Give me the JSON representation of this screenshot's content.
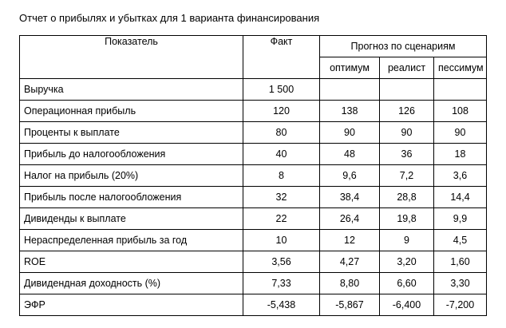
{
  "title": "Отчет о прибылях и убытках для 1 варианта финансирования",
  "headers": {
    "indicator": "Показатель",
    "fact": "Факт",
    "forecast_group": "Прогноз по сценариям",
    "scenarios": [
      "оптимум",
      "реалист",
      "пессимум"
    ]
  },
  "rows": [
    {
      "label": "Выручка",
      "fact": "1 500",
      "opt": "",
      "real": "",
      "pess": ""
    },
    {
      "label": "Операционная прибыль",
      "fact": "120",
      "opt": "138",
      "real": "126",
      "pess": "108"
    },
    {
      "label": "Проценты к выплате",
      "fact": "80",
      "opt": "90",
      "real": "90",
      "pess": "90"
    },
    {
      "label": "Прибыль до налогообложения",
      "fact": "40",
      "opt": "48",
      "real": "36",
      "pess": "18"
    },
    {
      "label": "Налог на прибыль (20%)",
      "fact": "8",
      "opt": "9,6",
      "real": "7,2",
      "pess": "3,6"
    },
    {
      "label": "Прибыль после налогообложения",
      "fact": "32",
      "opt": "38,4",
      "real": "28,8",
      "pess": "14,4"
    },
    {
      "label": "Дивиденды к выплате",
      "fact": "22",
      "opt": "26,4",
      "real": "19,8",
      "pess": "9,9"
    },
    {
      "label": "Нераспределенная прибыль за год",
      "fact": "10",
      "opt": "12",
      "real": "9",
      "pess": "4,5"
    },
    {
      "label": "ROE",
      "fact": "3,56",
      "opt": "4,27",
      "real": "3,20",
      "pess": "1,60"
    },
    {
      "label": "Дивидендная доходность (%)",
      "fact": "7,33",
      "opt": "8,80",
      "real": "6,60",
      "pess": "3,30"
    },
    {
      "label": "ЭФР",
      "fact": "-5,438",
      "opt": "-5,867",
      "real": "-6,400",
      "pess": "-7,200"
    }
  ]
}
